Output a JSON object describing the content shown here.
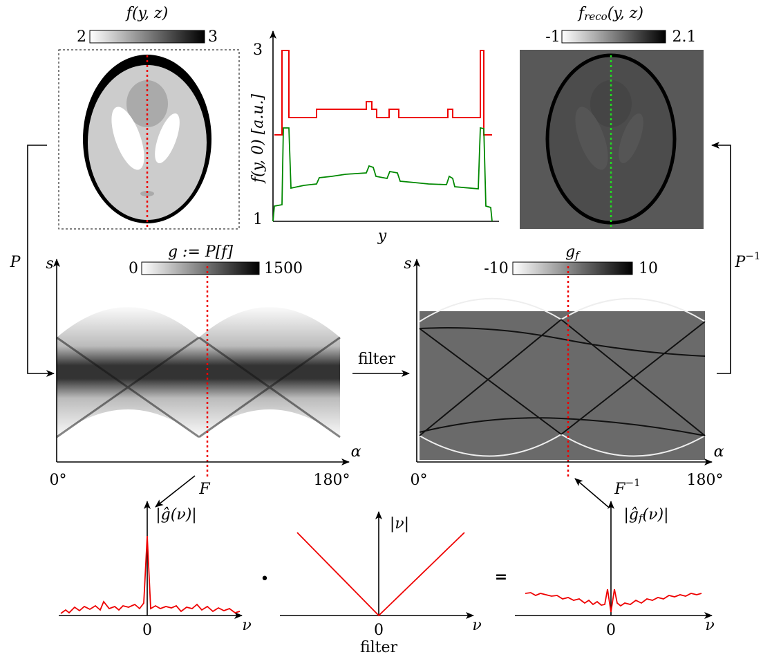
{
  "phantom": {
    "title": "f(y, z)",
    "colorbar": [
      "2",
      "3"
    ]
  },
  "profile": {
    "ylabel": "f(y, 0)  [a.u.]",
    "xlabel": "y",
    "yticks": [
      "3",
      "1"
    ]
  },
  "reconstruction": {
    "title": {
      "base": "f",
      "sub": "reco",
      "rest": "(y, z)"
    },
    "colorbar": [
      "-1",
      "2.1"
    ]
  },
  "sinogram": {
    "title": "g := P[f]",
    "colorbar": [
      "0",
      "1500"
    ],
    "y_axis": "s",
    "x_axis": "α",
    "xticks": [
      "0°",
      "180°"
    ]
  },
  "filtered_sinogram": {
    "title": {
      "base": "g",
      "sub": "f"
    },
    "colorbar": [
      "-10",
      "10"
    ],
    "y_axis": "s",
    "x_axis": "α",
    "xticks": [
      "0°",
      "180°"
    ]
  },
  "arrows": {
    "projection": "P",
    "back_projection": {
      "base": "P",
      "sup": "−1"
    },
    "filter": "filter",
    "fourier": "F",
    "inverse_fourier": {
      "base": "F",
      "sup": "−1"
    }
  },
  "spectra": {
    "input": {
      "label": "|ĝ(ν)|",
      "zero": "0",
      "x_axis": "ν"
    },
    "filter": {
      "label": "|ν|",
      "zero": "0",
      "x_axis": "ν",
      "caption": "filter"
    },
    "output": {
      "label": {
        "pre": "|ĝ",
        "sub": "f",
        "post": "(ν)|"
      },
      "zero": "0",
      "x_axis": "ν"
    },
    "times": "•",
    "equals": "="
  }
}
